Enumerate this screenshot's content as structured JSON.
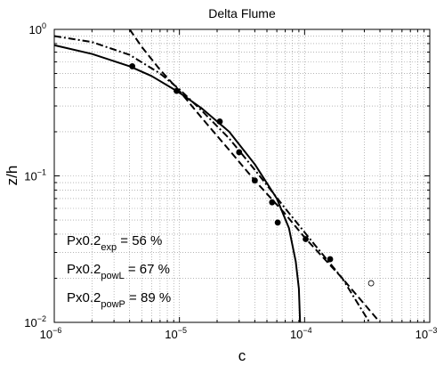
{
  "chart_data": {
    "type": "scatter",
    "title": "Delta Flume",
    "xlabel": "c",
    "ylabel": "z/h",
    "xscale": "log",
    "yscale": "log",
    "xlim": [
      1e-06,
      0.001
    ],
    "ylim": [
      0.01,
      1
    ],
    "grid": true,
    "x_ticks": [
      {
        "value": 1e-06,
        "base": "10",
        "exp": "−6"
      },
      {
        "value": 1e-05,
        "base": "10",
        "exp": "−5"
      },
      {
        "value": 0.0001,
        "base": "10",
        "exp": "−4"
      },
      {
        "value": 0.001,
        "base": "10",
        "exp": "−3"
      }
    ],
    "y_ticks": [
      {
        "value": 1,
        "base": "10",
        "exp": "0"
      },
      {
        "value": 0.1,
        "base": "10",
        "exp": "−1"
      },
      {
        "value": 0.01,
        "base": "10",
        "exp": "−2"
      }
    ],
    "measured_points": {
      "x": [
        4.2e-06,
        9.5e-06,
        2.1e-05,
        3e-05,
        4e-05,
        5.5e-05,
        6.1e-05,
        0.000102,
        0.00016
      ],
      "y": [
        0.56,
        0.38,
        0.235,
        0.145,
        0.093,
        0.066,
        0.048,
        0.037,
        0.027
      ],
      "marker": "filled-circle"
    },
    "excluded_points": {
      "x": [
        0.00034
      ],
      "y": [
        0.0185
      ],
      "marker": "open-circle"
    },
    "curves": [
      {
        "style": "solid",
        "x": [
          1e-06,
          2e-06,
          4e-06,
          6e-06,
          1e-05,
          1.5e-05,
          2.5e-05,
          4e-05,
          6e-05,
          7.5e-05,
          8.5e-05,
          9e-05,
          9.2e-05
        ],
        "y": [
          0.78,
          0.68,
          0.56,
          0.48,
          0.37,
          0.29,
          0.2,
          0.12,
          0.07,
          0.044,
          0.026,
          0.017,
          0.01
        ]
      },
      {
        "style": "dashed",
        "x": [
          4e-06,
          5e-06,
          7e-06,
          1e-05,
          1.5e-05,
          2.5e-05,
          4e-05,
          7e-05,
          0.0001,
          0.0002,
          0.0004
        ],
        "y": [
          1.0,
          0.76,
          0.53,
          0.38,
          0.25,
          0.15,
          0.093,
          0.055,
          0.038,
          0.02,
          0.01
        ]
      },
      {
        "style": "dash-dot",
        "x": [
          1e-06,
          2e-06,
          4e-06,
          7e-06,
          1e-05,
          1.5e-05,
          2.5e-05,
          4e-05,
          7e-05,
          0.00012,
          0.0002,
          0.00033
        ],
        "y": [
          0.9,
          0.82,
          0.67,
          0.5,
          0.39,
          0.28,
          0.18,
          0.11,
          0.06,
          0.034,
          0.02,
          0.01
        ]
      }
    ],
    "annotations": [
      {
        "main": "Px0.2",
        "sub": "exp",
        "rest": " = 56 %"
      },
      {
        "main": "Px0.2",
        "sub": "powL",
        "rest": " = 67 %"
      },
      {
        "main": "Px0.2",
        "sub": "powP",
        "rest": " = 89 %"
      }
    ]
  }
}
